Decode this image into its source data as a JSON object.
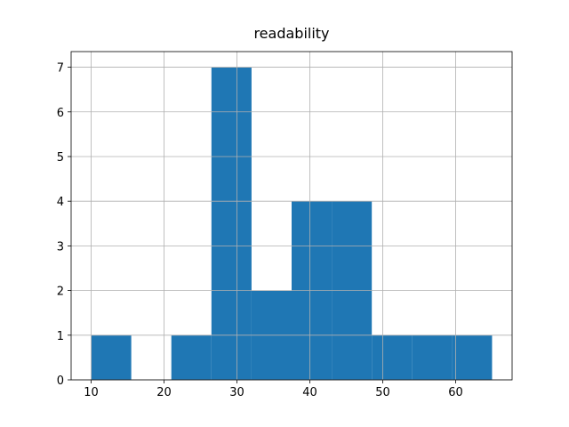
{
  "chart_data": {
    "type": "histogram",
    "title": "readability",
    "bins": [
      10,
      15.5,
      21,
      26.5,
      32,
      37.5,
      43,
      48.5,
      54,
      59.5,
      65
    ],
    "values": [
      1,
      0,
      1,
      7,
      2,
      4,
      4,
      1,
      1,
      1
    ],
    "color": "#1f77b4",
    "xlim": [
      7.25,
      67.75
    ],
    "xticks": [
      10,
      20,
      30,
      40,
      50,
      60
    ],
    "ylim": [
      0,
      7.35
    ],
    "yticks": [
      0,
      1,
      2,
      3,
      4,
      5,
      6,
      7
    ],
    "grid": true
  }
}
